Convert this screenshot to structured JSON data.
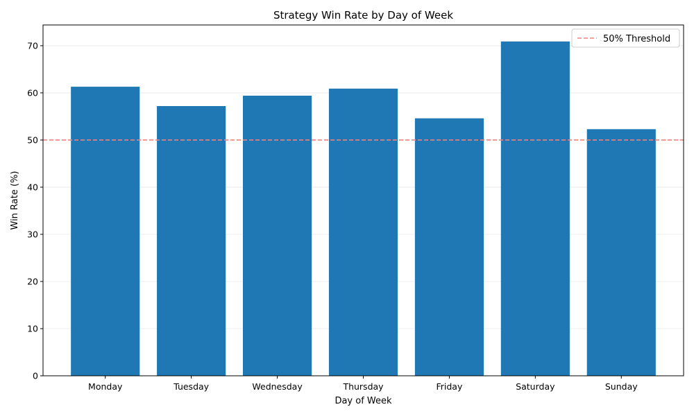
{
  "chart_data": {
    "type": "bar",
    "title": "Strategy Win Rate by Day of Week",
    "xlabel": "Day of Week",
    "ylabel": "Win Rate (%)",
    "categories": [
      "Monday",
      "Tuesday",
      "Wednesday",
      "Thursday",
      "Friday",
      "Saturday",
      "Sunday"
    ],
    "values": [
      61.3,
      57.2,
      59.4,
      60.9,
      54.6,
      70.9,
      52.3
    ],
    "ylim": [
      0,
      74.4
    ],
    "yticks": [
      0,
      10,
      20,
      30,
      40,
      50,
      60,
      70
    ],
    "grid": true,
    "bar_color": "#1f77b4",
    "reference_line": {
      "value": 50,
      "label": "50% Threshold",
      "color": "#f08080",
      "style": "dashed"
    },
    "legend_position": "top-right"
  }
}
